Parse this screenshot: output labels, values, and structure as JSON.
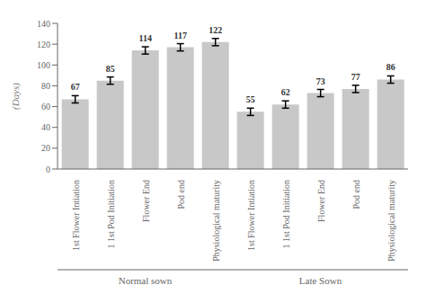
{
  "chart_data": {
    "type": "bar",
    "ylabel": "(Days)",
    "groups": [
      {
        "name": "Normal sown",
        "categories": [
          "1st Flower Intiation",
          "1 1st Pod Initiation",
          "Flower End",
          "Pod end",
          "Physiological maturity"
        ]
      },
      {
        "name": "Late Sown",
        "categories": [
          "1st Flower Intiation",
          "1 1st Pod Initiation",
          "Flower End",
          "Pod end",
          "Physiological maturity"
        ]
      }
    ],
    "values": [
      67,
      85,
      114,
      117,
      122,
      55,
      62,
      73,
      77,
      86
    ],
    "errors": [
      3.5,
      3.5,
      3.5,
      3.5,
      3.5,
      3.5,
      3.5,
      3.5,
      3.5,
      3.5
    ],
    "color": "#c8c8c8",
    "ylim": [
      0,
      140
    ],
    "yticks": [
      0,
      20,
      40,
      60,
      80,
      100,
      120,
      140
    ],
    "data_labels": true
  }
}
